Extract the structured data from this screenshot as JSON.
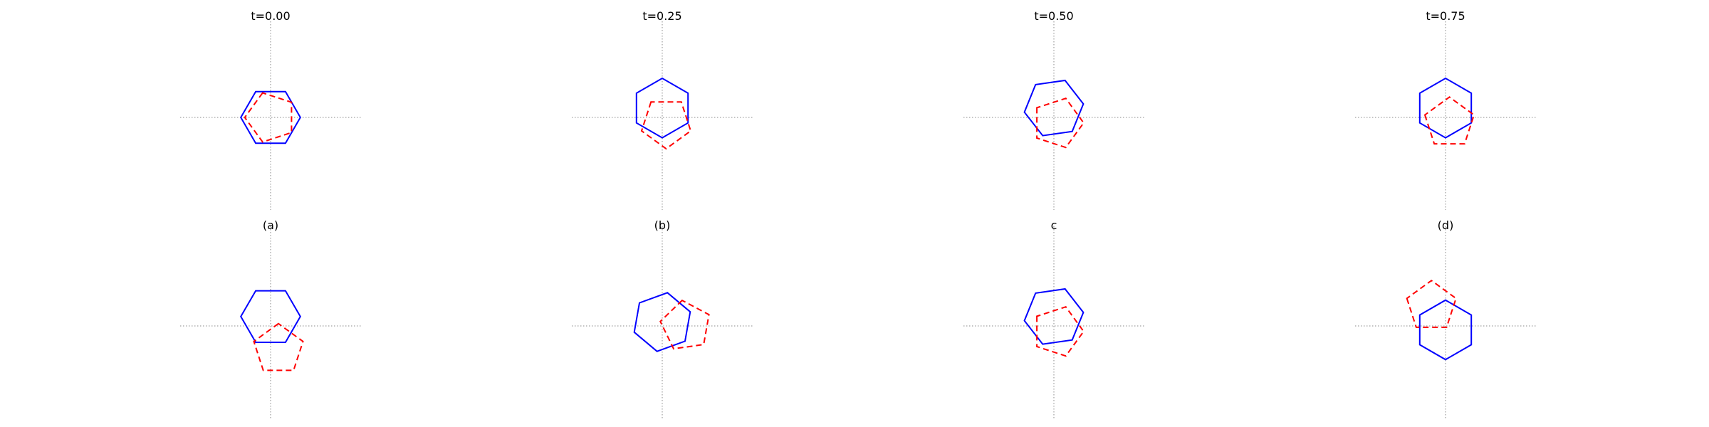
{
  "style": {
    "hexagon_color": "#0000ff",
    "pentagon_color": "#ff0000",
    "axis_color": "#8a8a8a"
  },
  "panels": [
    {
      "title": "t=0.00",
      "row": 0,
      "col": 0,
      "hexagon": {
        "cx": 0.0,
        "cy": 0.0,
        "rot": 0
      },
      "pentagon": {
        "cx": 0.0,
        "cy": 0.0,
        "rot": 18
      }
    },
    {
      "title": "t=0.25",
      "row": 0,
      "col": 1,
      "hexagon": {
        "cx": 0.0,
        "cy": 0.12,
        "rot": 30
      },
      "pentagon": {
        "cx": 0.05,
        "cy": -0.07,
        "rot": 36
      }
    },
    {
      "title": "t=0.50",
      "row": 0,
      "col": 2,
      "hexagon": {
        "cx": 0.0,
        "cy": 0.12,
        "rot": 8
      },
      "pentagon": {
        "cx": 0.05,
        "cy": -0.07,
        "rot": 54
      }
    },
    {
      "title": "t=0.75",
      "row": 0,
      "col": 3,
      "hexagon": {
        "cx": 0.0,
        "cy": 0.12,
        "rot": 30
      },
      "pentagon": {
        "cx": 0.05,
        "cy": -0.07,
        "rot": 72
      }
    },
    {
      "title": "(a)",
      "row": 1,
      "col": 0,
      "hexagon": {
        "cx": 0.0,
        "cy": 0.12,
        "rot": 0
      },
      "pentagon": {
        "cx": 0.1,
        "cy": -0.3,
        "rot": 0
      }
    },
    {
      "title": "(b)",
      "row": 1,
      "col": 1,
      "hexagon": {
        "cx": 0.0,
        "cy": 0.05,
        "rot": 20
      },
      "pentagon": {
        "cx": 0.3,
        "cy": 0.0,
        "rot": 8
      }
    },
    {
      "title": "c",
      "row": 1,
      "col": 2,
      "hexagon": {
        "cx": 0.0,
        "cy": 0.12,
        "rot": 8
      },
      "pentagon": {
        "cx": 0.05,
        "cy": -0.07,
        "rot": 54
      }
    },
    {
      "title": "(d)",
      "row": 1,
      "col": 3,
      "hexagon": {
        "cx": 0.0,
        "cy": -0.05,
        "rot": 30
      },
      "pentagon": {
        "cx": -0.18,
        "cy": 0.25,
        "rot": 72
      }
    }
  ]
}
